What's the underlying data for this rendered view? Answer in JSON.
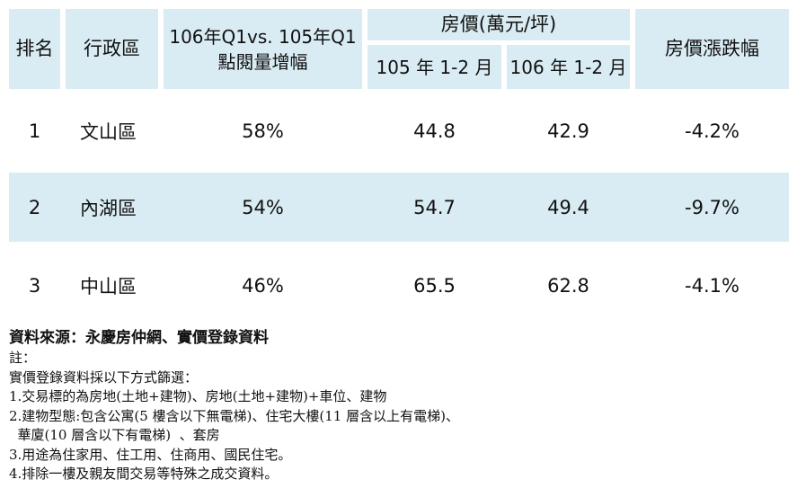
{
  "table": {
    "headers": {
      "rank": "排名",
      "district": "行政區",
      "views_line1": "106年Q1vs. 105年Q1",
      "views_line2": "點閱量增幅",
      "price_group": "房價(萬元/坪)",
      "price_105": "105 年 1-2 月",
      "price_106": "106 年 1-2 月",
      "change": "房價漲跌幅"
    },
    "rows": [
      {
        "rank": "1",
        "district": "文山區",
        "views": "58%",
        "price_105": "44.8",
        "price_106": "42.9",
        "change": "-4.2%"
      },
      {
        "rank": "2",
        "district": "內湖區",
        "views": "54%",
        "price_105": "54.7",
        "price_106": "49.4",
        "change": "-9.7%"
      },
      {
        "rank": "3",
        "district": "中山區",
        "views": "46%",
        "price_105": "65.5",
        "price_106": "62.8",
        "change": "-4.1%"
      }
    ]
  },
  "notes": {
    "source": "資料來源：永慶房仲網、實價登錄資料",
    "lines": [
      "註：",
      "實價登錄資料採以下方式篩選：",
      "1.交易標的為房地(土地+建物)、房地(土地+建物)+車位、建物",
      "2.建物型態:包含公寓(5 樓含以下無電梯)、住宅大樓(11 層含以上有電梯)、",
      "  華廈(10 層含以下有電梯)  、套房",
      "3.用途為住家用、住工用、住商用、國民住宅。",
      "4.排除一樓及親友間交易等特殊之成交資料。"
    ]
  }
}
